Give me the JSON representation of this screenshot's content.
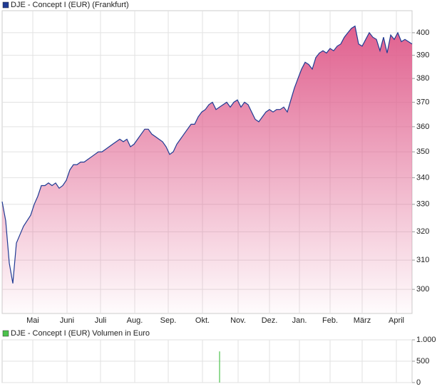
{
  "chart_data": [
    {
      "type": "area",
      "log_scale": true,
      "grid": true,
      "series": [
        {
          "name": "DJE - Concept I (EUR) (Frankfurt)",
          "color": "#1f3a93",
          "fill": "#e0608e",
          "values": [
            331,
            324,
            309,
            302,
            316,
            319,
            322,
            324,
            326,
            330,
            333,
            337,
            337,
            338,
            337,
            338,
            336,
            337,
            339,
            343,
            345,
            345,
            346,
            346,
            347,
            348,
            349,
            350,
            350,
            351,
            352,
            353,
            354,
            355,
            354,
            355,
            352,
            353,
            355,
            357,
            359,
            359,
            357,
            356,
            355,
            354,
            352,
            349,
            350,
            353,
            355,
            357,
            359,
            361,
            361,
            364,
            366,
            367,
            369,
            370,
            367,
            368,
            369,
            370,
            368,
            370,
            371,
            368,
            370,
            369,
            366,
            363,
            362,
            364,
            366,
            367,
            366,
            367,
            367,
            368,
            366,
            371,
            376,
            380,
            384,
            387,
            386,
            384,
            389,
            391,
            392,
            391,
            393,
            392,
            394,
            395,
            398,
            400,
            402,
            403,
            395,
            394,
            397,
            400,
            398,
            397,
            392,
            398,
            391,
            399,
            397,
            400,
            396,
            397,
            396,
            395
          ]
        }
      ],
      "xlim": [
        0,
        115
      ],
      "xticks": [
        {
          "value": 8.6,
          "label": "Mai"
        },
        {
          "value": 18.2,
          "label": "Juni"
        },
        {
          "value": 27.6,
          "label": "Juli"
        },
        {
          "value": 37.2,
          "label": "Aug."
        },
        {
          "value": 46.6,
          "label": "Sep."
        },
        {
          "value": 56.2,
          "label": "Okt."
        },
        {
          "value": 66.2,
          "label": "Nov."
        },
        {
          "value": 75,
          "label": "Dez."
        },
        {
          "value": 83.4,
          "label": "Jan."
        },
        {
          "value": 92,
          "label": "Feb."
        },
        {
          "value": 101,
          "label": "März"
        },
        {
          "value": 110.6,
          "label": "April"
        }
      ],
      "ylim": [
        292,
        410
      ],
      "yticks": [
        300,
        310,
        320,
        330,
        340,
        350,
        360,
        370,
        380,
        390,
        400
      ]
    },
    {
      "type": "bar",
      "grid": true,
      "series": [
        {
          "name": "DJE - Concept I (EUR) Volumen in Euro",
          "color": "#4cc24c",
          "values": [
            0,
            0,
            0,
            0,
            0,
            0,
            0,
            0,
            0,
            0,
            0,
            0,
            0,
            0,
            0,
            0,
            0,
            0,
            0,
            0,
            0,
            0,
            0,
            0,
            0,
            0,
            0,
            0,
            0,
            0,
            0,
            0,
            0,
            0,
            0,
            0,
            0,
            0,
            0,
            0,
            0,
            0,
            0,
            0,
            0,
            0,
            0,
            0,
            0,
            0,
            0,
            0,
            0,
            0,
            0,
            0,
            0,
            0,
            0,
            0,
            0,
            730,
            0,
            0,
            0,
            0,
            0,
            0,
            0,
            0,
            0,
            0,
            0,
            0,
            0,
            0,
            0,
            0,
            0,
            0,
            0,
            0,
            0,
            0,
            0,
            0,
            0,
            0,
            0,
            0,
            0,
            0,
            0,
            0,
            0,
            0,
            0,
            0,
            0,
            0,
            0,
            0,
            0,
            0,
            0,
            0,
            0,
            0,
            0,
            0,
            0,
            0,
            0,
            0,
            0,
            0
          ]
        }
      ],
      "xlim": [
        0,
        115
      ],
      "ylim": [
        0,
        1000
      ],
      "yticks": [
        0,
        500,
        {
          "value": 1000,
          "label": "1.000"
        }
      ]
    }
  ]
}
